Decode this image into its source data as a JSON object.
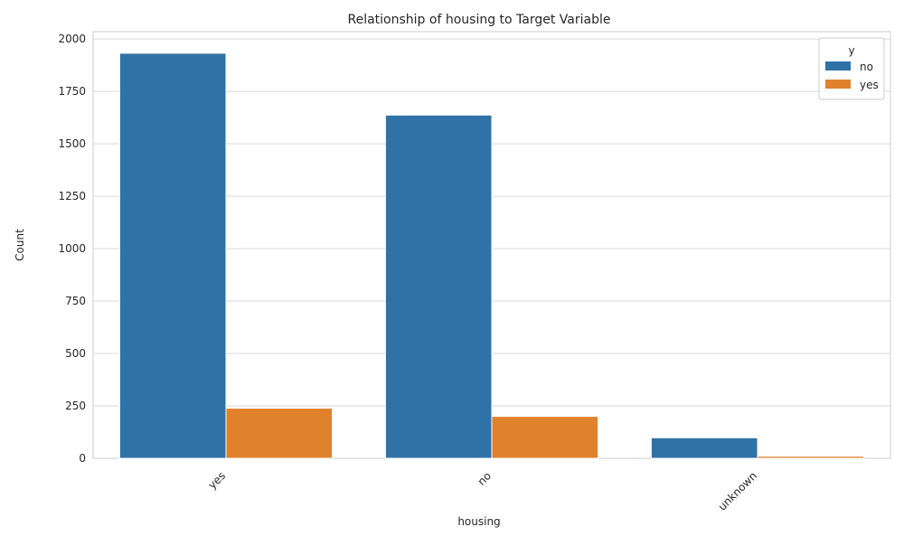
{
  "chart_data": {
    "type": "bar",
    "title": "Relationship of housing to Target Variable",
    "xlabel": "housing",
    "ylabel": "Count",
    "categories": [
      "yes",
      "no",
      "unknown"
    ],
    "series": [
      {
        "name": "no",
        "values": [
          1932,
          1637,
          98
        ],
        "color": "#2f72a8"
      },
      {
        "name": "yes",
        "values": [
          239,
          200,
          10
        ],
        "color": "#e0812b"
      }
    ],
    "ylim": [
      0,
      2035
    ],
    "yticks": [
      0,
      250,
      500,
      750,
      1000,
      1250,
      1500,
      1750,
      2000
    ],
    "ytick_labels": [
      "0",
      "250",
      "500",
      "750",
      "1000",
      "1250",
      "1500",
      "1750",
      "2000"
    ],
    "grid": true,
    "legend": {
      "title": "y",
      "position": "top-right"
    }
  }
}
